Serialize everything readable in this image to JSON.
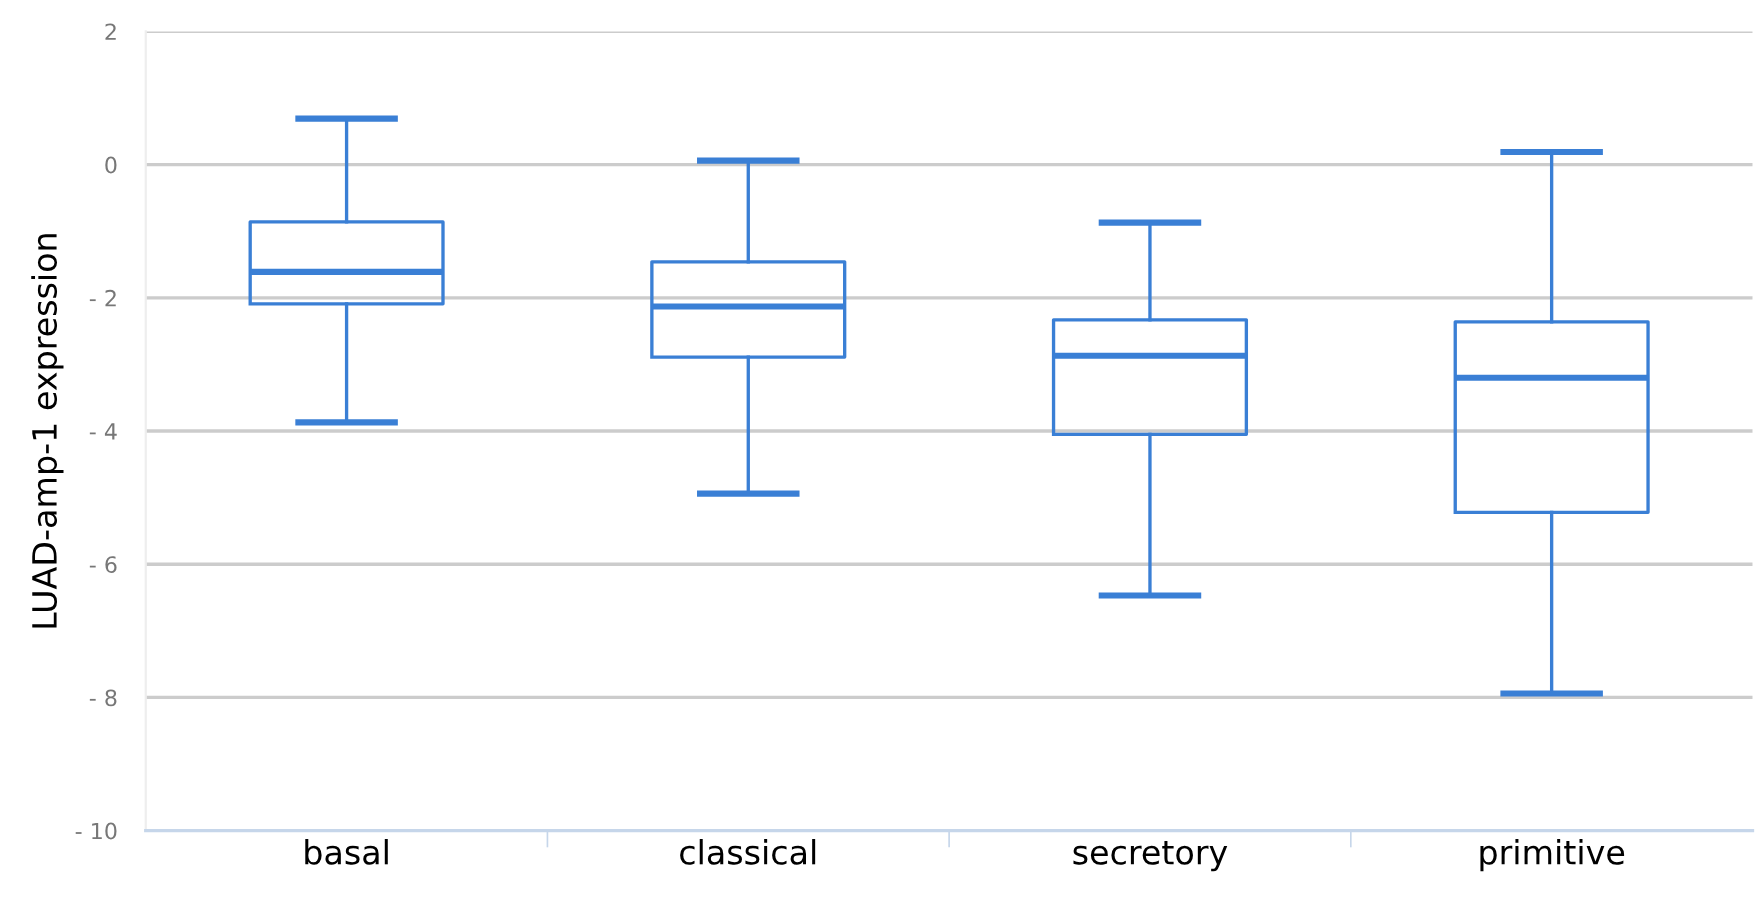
{
  "chart_data": {
    "type": "box",
    "ylabel": "LUAD-amp-1 expression",
    "categories": [
      "basal",
      "classical",
      "secretory",
      "primitive"
    ],
    "series": [
      {
        "color": "#3a7fd5",
        "boxes": [
          {
            "low": -3.87,
            "q1": -2.09,
            "median": -1.61,
            "q3": -0.86,
            "high": 0.69
          },
          {
            "low": -4.94,
            "q1": -2.89,
            "median": -2.13,
            "q3": -1.46,
            "high": 0.06
          },
          {
            "low": -6.47,
            "q1": -4.05,
            "median": -2.87,
            "q3": -2.33,
            "high": -0.87
          },
          {
            "low": -7.94,
            "q1": -5.22,
            "median": -3.2,
            "q3": -2.36,
            "high": 0.19
          }
        ]
      }
    ],
    "ylim": [
      -10,
      2
    ],
    "yticks": [
      {
        "value": -10,
        "label": "- 10"
      },
      {
        "value": -8,
        "label": "- 8"
      },
      {
        "value": -6,
        "label": "- 6"
      },
      {
        "value": -4,
        "label": "- 4"
      },
      {
        "value": -2,
        "label": "- 2"
      },
      0,
      2
    ],
    "grid": "y"
  }
}
